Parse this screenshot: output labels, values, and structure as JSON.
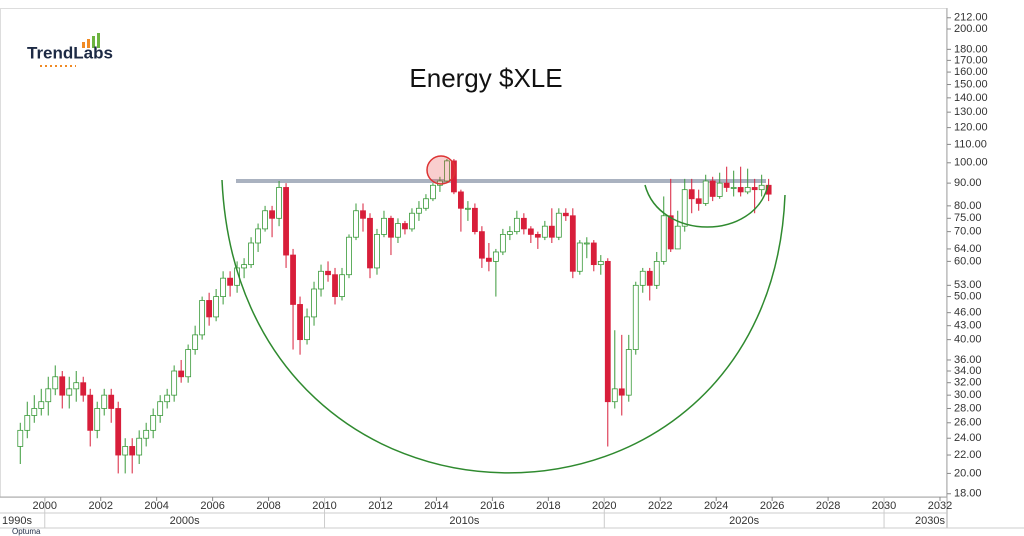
{
  "chart_data": {
    "type": "candlestick",
    "title": "Energy $XLE",
    "logo": "TrendLabs",
    "footer": "Optuma",
    "log_scale": true,
    "grid": false,
    "up_color": "#3a9a3a",
    "down_color": "#d81e3a",
    "resistance": 91,
    "x": [
      1999.125,
      1999.375,
      1999.625,
      1999.875,
      2000.125,
      2000.375,
      2000.625,
      2000.875,
      2001.125,
      2001.375,
      2001.625,
      2001.875,
      2002.125,
      2002.375,
      2002.625,
      2002.875,
      2003.125,
      2003.375,
      2003.625,
      2003.875,
      2004.125,
      2004.375,
      2004.625,
      2004.875,
      2005.125,
      2005.375,
      2005.625,
      2005.875,
      2006.125,
      2006.375,
      2006.625,
      2006.875,
      2007.125,
      2007.375,
      2007.625,
      2007.875,
      2008.125,
      2008.375,
      2008.625,
      2008.875,
      2009.125,
      2009.375,
      2009.625,
      2009.875,
      2010.125,
      2010.375,
      2010.625,
      2010.875,
      2011.125,
      2011.375,
      2011.625,
      2011.875,
      2012.125,
      2012.375,
      2012.625,
      2012.875,
      2013.125,
      2013.375,
      2013.625,
      2013.875,
      2014.125,
      2014.375,
      2014.625,
      2014.875,
      2015.125,
      2015.375,
      2015.625,
      2015.875,
      2016.125,
      2016.375,
      2016.625,
      2016.875,
      2017.125,
      2017.375,
      2017.625,
      2017.875,
      2018.125,
      2018.375,
      2018.625,
      2018.875,
      2019.125,
      2019.375,
      2019.625,
      2019.875,
      2020.125,
      2020.375,
      2020.625,
      2020.875,
      2021.125,
      2021.375,
      2021.625,
      2021.875,
      2022.125,
      2022.375,
      2022.625,
      2022.875,
      2023.125,
      2023.375,
      2023.625,
      2023.875,
      2024.125,
      2024.375,
      2024.625,
      2024.875,
      2025.125,
      2025.375,
      2025.625,
      2025.875
    ],
    "open": [
      23,
      25,
      27,
      28,
      29,
      31,
      33,
      30,
      31,
      32,
      30,
      25,
      28,
      30,
      28,
      22,
      23,
      22,
      24,
      25,
      27,
      29,
      30,
      34,
      33,
      38,
      41,
      49,
      45,
      50,
      55,
      53,
      58,
      59,
      66,
      71,
      78,
      75,
      88,
      62,
      48,
      40,
      45,
      52,
      57,
      56,
      50,
      56,
      68,
      78,
      75,
      58,
      69,
      75,
      68,
      73,
      71,
      77,
      79,
      83,
      89,
      91,
      101,
      86,
      79,
      79,
      70,
      61,
      60,
      63,
      69,
      70,
      75,
      71,
      69,
      68,
      72,
      68,
      77,
      76,
      57,
      66,
      66,
      59,
      60,
      29,
      31,
      30,
      38,
      53,
      57,
      53,
      60,
      76,
      64,
      72,
      87,
      83,
      81,
      91,
      84,
      90,
      88,
      88,
      86,
      88,
      87,
      89
    ],
    "high": [
      26,
      29,
      30,
      31,
      33,
      35,
      34,
      33,
      34,
      33,
      31,
      29,
      31,
      31,
      29,
      24,
      24,
      25,
      26,
      28,
      30,
      31,
      35,
      36,
      39,
      43,
      50,
      51,
      52,
      57,
      57,
      60,
      61,
      68,
      73,
      80,
      80,
      91,
      90,
      64,
      50,
      47,
      54,
      59,
      60,
      58,
      58,
      69,
      81,
      81,
      77,
      71,
      78,
      76,
      75,
      74,
      79,
      82,
      85,
      90,
      93,
      102,
      102,
      87,
      82,
      81,
      72,
      66,
      64,
      71,
      72,
      78,
      77,
      72,
      70,
      74,
      79,
      79,
      79,
      79,
      67,
      68,
      67,
      62,
      61,
      42,
      41,
      41,
      54,
      58,
      58,
      63,
      84,
      92,
      78,
      92,
      92,
      87,
      94,
      93,
      95,
      98,
      96,
      98,
      97,
      92,
      94,
      92
    ],
    "low": [
      21,
      24,
      26,
      27,
      27,
      30,
      28,
      28,
      29,
      29,
      23,
      24,
      27,
      26,
      20,
      20,
      20,
      21,
      23,
      24,
      26,
      28,
      29,
      32,
      32,
      37,
      40,
      43,
      44,
      48,
      50,
      51,
      55,
      58,
      63,
      70,
      68,
      72,
      58,
      38,
      37,
      39,
      43,
      50,
      54,
      48,
      49,
      55,
      67,
      70,
      55,
      56,
      68,
      62,
      66,
      69,
      70,
      74,
      78,
      82,
      86,
      90,
      85,
      70,
      74,
      69,
      58,
      57,
      50,
      62,
      67,
      69,
      69,
      66,
      64,
      67,
      66,
      67,
      74,
      55,
      56,
      61,
      57,
      56,
      23,
      28,
      27,
      29,
      37,
      51,
      49,
      52,
      59,
      63,
      64,
      70,
      77,
      78,
      80,
      82,
      83,
      86,
      84,
      84,
      85,
      77,
      84,
      82
    ],
    "close": [
      25,
      27,
      28,
      29,
      31,
      33,
      30,
      31,
      32,
      30,
      25,
      28,
      30,
      28,
      22,
      23,
      22,
      24,
      25,
      27,
      29,
      30,
      34,
      33,
      38,
      41,
      49,
      45,
      50,
      55,
      53,
      58,
      59,
      66,
      71,
      78,
      75,
      88,
      62,
      48,
      40,
      45,
      52,
      57,
      56,
      50,
      56,
      68,
      78,
      75,
      58,
      69,
      75,
      68,
      73,
      71,
      77,
      79,
      83,
      89,
      91,
      101,
      86,
      79,
      79,
      70,
      61,
      60,
      63,
      69,
      70,
      75,
      71,
      69,
      68,
      72,
      68,
      77,
      76,
      57,
      66,
      66,
      59,
      60,
      29,
      31,
      30,
      38,
      53,
      57,
      53,
      60,
      76,
      64,
      72,
      87,
      83,
      81,
      91,
      84,
      90,
      88,
      88,
      86,
      88,
      87,
      89,
      85
    ],
    "xlim": [
      1998.4,
      2032.25
    ],
    "xticks": [
      2000,
      2002,
      2004,
      2006,
      2008,
      2010,
      2012,
      2014,
      2016,
      2018,
      2020,
      2022,
      2024,
      2026,
      2028,
      2030,
      2032
    ],
    "decade_ticks": [
      {
        "value": 1990,
        "label": "1990s"
      },
      {
        "value": 2000,
        "label": "2000s"
      },
      {
        "value": 2010,
        "label": "2010s"
      },
      {
        "value": 2020,
        "label": "2020s"
      },
      {
        "value": 2030,
        "label": "2030s"
      }
    ],
    "ylim": [
      17.7,
      223
    ],
    "yticks": [
      {
        "value": 212,
        "label": "212.00"
      },
      {
        "value": 200,
        "label": "200.00"
      },
      {
        "value": 180,
        "label": "180.00"
      },
      {
        "value": 170,
        "label": "170.00"
      },
      {
        "value": 160,
        "label": "160.00"
      },
      {
        "value": 150,
        "label": "150.00"
      },
      {
        "value": 140,
        "label": "140.00"
      },
      {
        "value": 130,
        "label": "130.00"
      },
      {
        "value": 120,
        "label": "120.00"
      },
      {
        "value": 110,
        "label": "110.00"
      },
      {
        "value": 100,
        "label": "100.00"
      },
      {
        "value": 90,
        "label": "90.00"
      },
      {
        "value": 80,
        "label": "80.00"
      },
      {
        "value": 75,
        "label": "75.00"
      },
      {
        "value": 70,
        "label": "70.00"
      },
      {
        "value": 64,
        "label": "64.00"
      },
      {
        "value": 60,
        "label": "60.00"
      },
      {
        "value": 53,
        "label": "53.00"
      },
      {
        "value": 50,
        "label": "50.00"
      },
      {
        "value": 46,
        "label": "46.00"
      },
      {
        "value": 43,
        "label": "43.00"
      },
      {
        "value": 40,
        "label": "40.00"
      },
      {
        "value": 36,
        "label": "36.00"
      },
      {
        "value": 34,
        "label": "34.00"
      },
      {
        "value": 32,
        "label": "32.00"
      },
      {
        "value": 30,
        "label": "30.00"
      },
      {
        "value": 28,
        "label": "28.00"
      },
      {
        "value": 26,
        "label": "26.00"
      },
      {
        "value": 24,
        "label": "24.00"
      },
      {
        "value": 22,
        "label": "22.00"
      },
      {
        "value": 20,
        "label": "20.00"
      },
      {
        "value": 18,
        "label": "18.00"
      }
    ]
  }
}
